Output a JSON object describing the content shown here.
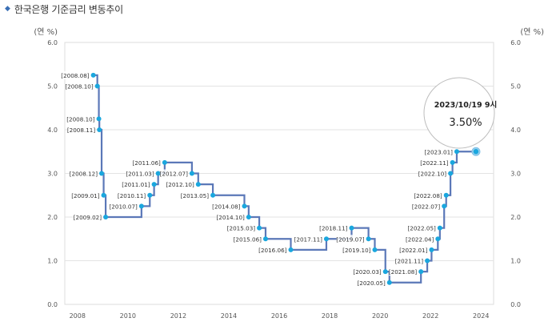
{
  "page": {
    "title": "한국은행 기준금리 변동추이"
  },
  "chart_data": {
    "type": "line",
    "title": "한국은행 기준금리 변동추이",
    "ylabel_left": "(연 %)",
    "ylabel_right": "(연 %)",
    "ylim": [
      0,
      6
    ],
    "yticks": [
      "0.0",
      "1.0",
      "2.0",
      "3.0",
      "4.0",
      "5.0",
      "6.0"
    ],
    "xlim": [
      2007.5,
      2024.5
    ],
    "xticks": [
      "2008",
      "2010",
      "2012",
      "2014",
      "2016",
      "2018",
      "2020",
      "2022",
      "2024"
    ],
    "grid": "horizontal",
    "series": [
      {
        "color": "#5b78b8",
        "marker_color": "#1aa7de",
        "points": [
          {
            "x": 2008.63,
            "y": 5.25,
            "label": "[2008.08]",
            "side": "left",
            "dy": 0
          },
          {
            "x": 2008.79,
            "y": 5.0,
            "label": "[2008.10]",
            "side": "left",
            "dy": 0
          },
          {
            "x": 2008.85,
            "y": 4.25,
            "label": "[2008.10]",
            "side": "left",
            "dy": 0
          },
          {
            "x": 2008.87,
            "y": 4.0,
            "label": "[2008.11]",
            "side": "left",
            "dy": 0
          },
          {
            "x": 2008.96,
            "y": 3.0,
            "label": "[2008.12]",
            "side": "left",
            "dy": 0
          },
          {
            "x": 2009.04,
            "y": 2.5,
            "label": "[2009.01]",
            "side": "left",
            "dy": 0
          },
          {
            "x": 2009.12,
            "y": 2.0,
            "label": "[2009.02]",
            "side": "left",
            "dy": 0
          },
          {
            "x": 2010.54,
            "y": 2.25,
            "label": "[2010.07]",
            "side": "left",
            "dy": 0
          },
          {
            "x": 2010.87,
            "y": 2.5,
            "label": "[2010.11]",
            "side": "left",
            "dy": 0
          },
          {
            "x": 2011.04,
            "y": 2.75,
            "label": "[2011.01]",
            "side": "left",
            "dy": 0
          },
          {
            "x": 2011.2,
            "y": 3.0,
            "label": "[2011.03]",
            "side": "left",
            "dy": 0
          },
          {
            "x": 2011.46,
            "y": 3.25,
            "label": "[2011.06]",
            "side": "left",
            "dy": 0
          },
          {
            "x": 2012.54,
            "y": 3.0,
            "label": "[2012.07]",
            "side": "left",
            "dy": 0
          },
          {
            "x": 2012.79,
            "y": 2.75,
            "label": "[2012.10]",
            "side": "left",
            "dy": 0
          },
          {
            "x": 2013.37,
            "y": 2.5,
            "label": "[2013.05]",
            "side": "left",
            "dy": 0
          },
          {
            "x": 2014.62,
            "y": 2.25,
            "label": "[2014.08]",
            "side": "left",
            "dy": 0
          },
          {
            "x": 2014.79,
            "y": 2.0,
            "label": "[2014.10]",
            "side": "left",
            "dy": 0
          },
          {
            "x": 2015.21,
            "y": 1.75,
            "label": "[2015.03]",
            "side": "left",
            "dy": 0
          },
          {
            "x": 2015.46,
            "y": 1.5,
            "label": "[2015.06]",
            "side": "left",
            "dy": 0
          },
          {
            "x": 2016.46,
            "y": 1.25,
            "label": "[2016.06]",
            "side": "left",
            "dy": 0
          },
          {
            "x": 2017.87,
            "y": 1.5,
            "label": "[2017.11]",
            "side": "left",
            "dy": 0
          },
          {
            "x": 2018.87,
            "y": 1.75,
            "label": "[2018.11]",
            "side": "left",
            "dy": 0
          },
          {
            "x": 2019.54,
            "y": 1.5,
            "label": "[2019.07]",
            "side": "left",
            "dy": 0
          },
          {
            "x": 2019.79,
            "y": 1.25,
            "label": "[2019.10]",
            "side": "left",
            "dy": 0
          },
          {
            "x": 2020.21,
            "y": 0.75,
            "label": "[2020.03]",
            "side": "left",
            "dy": 0
          },
          {
            "x": 2020.37,
            "y": 0.5,
            "label": "[2020.05]",
            "side": "left",
            "dy": 0
          },
          {
            "x": 2021.62,
            "y": 0.75,
            "label": "[2021.08]",
            "side": "left",
            "dy": 0
          },
          {
            "x": 2021.87,
            "y": 1.0,
            "label": "[2021.11]",
            "side": "left",
            "dy": 0
          },
          {
            "x": 2022.04,
            "y": 1.25,
            "label": "[2022.01]",
            "side": "left",
            "dy": 0
          },
          {
            "x": 2022.29,
            "y": 1.5,
            "label": "[2022.04]",
            "side": "left",
            "dy": 0
          },
          {
            "x": 2022.37,
            "y": 1.75,
            "label": "[2022.05]",
            "side": "left",
            "dy": 0
          },
          {
            "x": 2022.54,
            "y": 2.25,
            "label": "[2022.07]",
            "side": "left",
            "dy": 0
          },
          {
            "x": 2022.62,
            "y": 2.5,
            "label": "[2022.08]",
            "side": "left",
            "dy": 0
          },
          {
            "x": 2022.79,
            "y": 3.0,
            "label": "[2022.10]",
            "side": "left",
            "dy": 0
          },
          {
            "x": 2022.87,
            "y": 3.25,
            "label": "[2022.11]",
            "side": "left",
            "dy": 0
          },
          {
            "x": 2023.04,
            "y": 3.5,
            "label": "[2023.01]",
            "side": "left",
            "dy": 0
          },
          {
            "x": 2023.8,
            "y": 3.5,
            "label": "",
            "side": "none",
            "dy": 0,
            "highlight": true
          }
        ]
      }
    ],
    "callout": {
      "date": "2023/10/19 9시",
      "value": "3.50%"
    }
  }
}
